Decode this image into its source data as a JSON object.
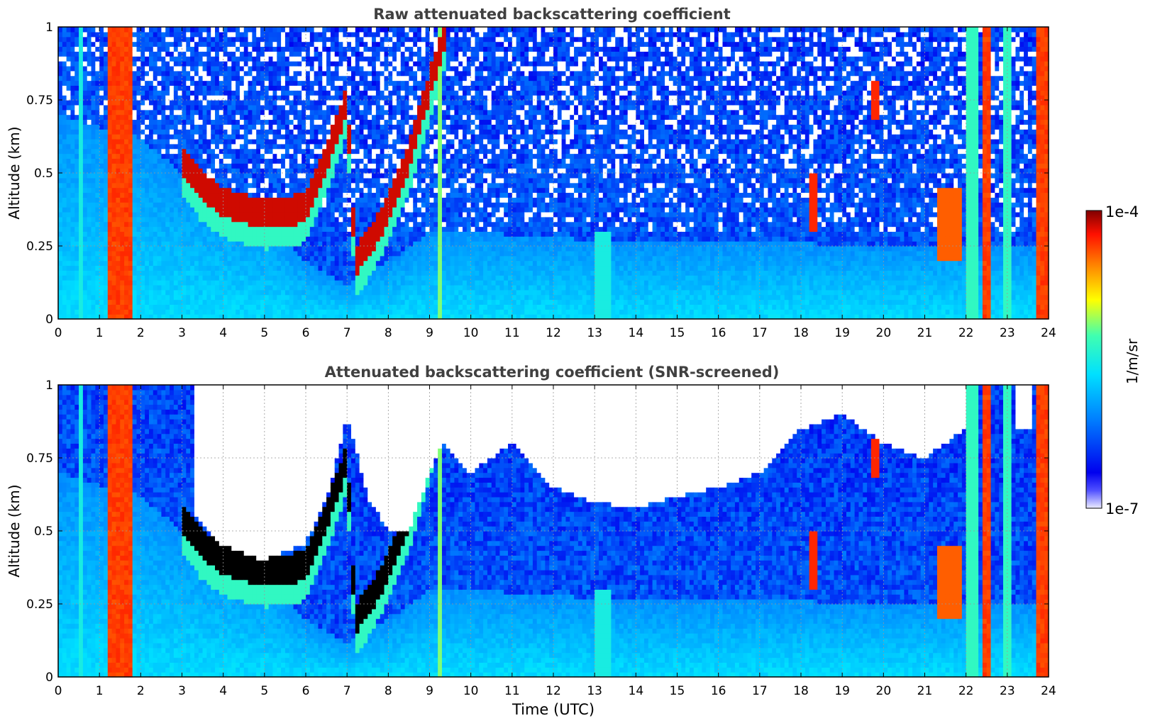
{
  "chart_data": [
    {
      "type": "heatmap",
      "title": "Raw attenuated backscattering coefficient",
      "xlabel": "",
      "ylabel": "Altitude (km)",
      "xlim": [
        0,
        24
      ],
      "ylim": [
        0,
        1
      ],
      "xticks": [
        "0",
        "1",
        "2",
        "3",
        "4",
        "5",
        "6",
        "7",
        "8",
        "9",
        "10",
        "11",
        "12",
        "13",
        "14",
        "15",
        "16",
        "17",
        "18",
        "19",
        "20",
        "21",
        "22",
        "23",
        "24"
      ],
      "yticks": [
        "0",
        "0.25",
        "0.5",
        "0.75",
        "1"
      ],
      "grid": true,
      "screened": false,
      "features": {
        "aerosol_layer_top_km": [
          [
            0,
            0.7
          ],
          [
            2,
            0.62
          ],
          [
            3,
            0.5
          ],
          [
            4,
            0.42
          ],
          [
            5,
            0.35
          ],
          [
            6,
            0.2
          ],
          [
            7,
            0.12
          ],
          [
            8,
            0.2
          ],
          [
            9,
            0.3
          ],
          [
            10,
            0.3
          ],
          [
            12,
            0.28
          ],
          [
            14,
            0.26
          ],
          [
            16,
            0.26
          ],
          [
            18,
            0.26
          ],
          [
            20,
            0.25
          ],
          [
            22,
            0.25
          ],
          [
            24,
            0.25
          ]
        ],
        "cloud_top_km": [
          [
            3,
            0.55
          ],
          [
            3.5,
            0.45
          ],
          [
            4,
            0.4
          ],
          [
            5,
            0.36
          ],
          [
            6,
            0.38
          ],
          [
            6.5,
            0.55
          ],
          [
            7,
            0.75
          ],
          [
            7.2,
            0.2
          ],
          [
            7.5,
            0.25
          ],
          [
            8,
            0.38
          ],
          [
            8.5,
            0.55
          ],
          [
            9,
            0.8
          ],
          [
            9.4,
            1.0
          ]
        ],
        "precip_bands_hr": [
          [
            1.2,
            1.8
          ],
          [
            22.4,
            22.6
          ],
          [
            23.7,
            24
          ]
        ]
      }
    },
    {
      "type": "heatmap",
      "title": "Attenuated backscattering coefficient (SNR-screened)",
      "xlabel": "Time (UTC)",
      "ylabel": "Altitude (km)",
      "xlim": [
        0,
        24
      ],
      "ylim": [
        0,
        1
      ],
      "xticks": [
        "0",
        "1",
        "2",
        "3",
        "4",
        "5",
        "6",
        "7",
        "8",
        "9",
        "10",
        "11",
        "12",
        "13",
        "14",
        "15",
        "16",
        "17",
        "18",
        "19",
        "20",
        "21",
        "22",
        "23",
        "24"
      ],
      "yticks": [
        "0",
        "0.25",
        "0.5",
        "0.75",
        "1"
      ],
      "grid": true,
      "screened": true,
      "features": {
        "screened_below_km": [
          [
            3.3,
            0.55
          ],
          [
            4,
            0.45
          ],
          [
            5,
            0.4
          ],
          [
            6,
            0.46
          ],
          [
            6.6,
            0.65
          ],
          [
            7,
            0.9
          ],
          [
            7.5,
            0.62
          ],
          [
            8,
            0.5
          ],
          [
            8.5,
            0.5
          ],
          [
            9,
            0.7
          ],
          [
            9.3,
            0.8
          ],
          [
            10,
            0.7
          ],
          [
            11,
            0.8
          ],
          [
            12,
            0.65
          ],
          [
            13,
            0.6
          ],
          [
            14,
            0.58
          ],
          [
            15,
            0.62
          ],
          [
            16,
            0.65
          ],
          [
            17,
            0.7
          ],
          [
            18,
            0.85
          ],
          [
            19,
            0.9
          ],
          [
            20,
            0.8
          ],
          [
            21,
            0.75
          ],
          [
            22,
            0.85
          ],
          [
            23,
            0.85
          ]
        ]
      }
    }
  ],
  "colorbar": {
    "label": "1/m/sr",
    "max_label": "1e-4",
    "min_label": "1e-7",
    "scale": "log",
    "range": [
      1e-07,
      0.0001
    ],
    "colormap": "jet"
  }
}
